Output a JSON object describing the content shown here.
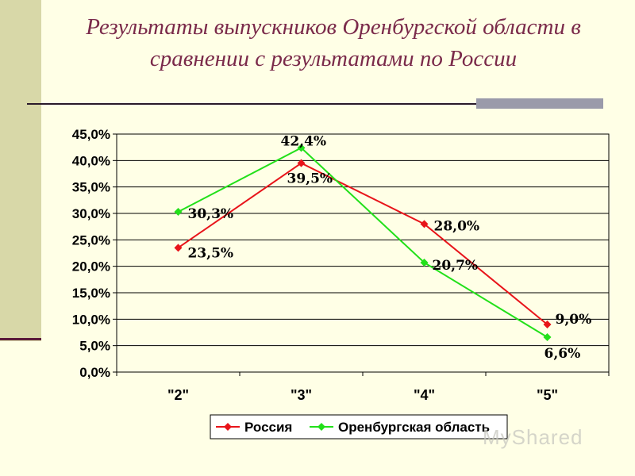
{
  "slide": {
    "title": "Результаты выпускников Оренбургской области в сравнении с результатами по России",
    "watermark": "MyShared"
  },
  "chart_data": {
    "type": "line",
    "title": "",
    "xlabel": "",
    "ylabel": "",
    "categories": [
      "\"2\"",
      "\"3\"",
      "\"4\"",
      "\"5\""
    ],
    "ylim": [
      0,
      45
    ],
    "ytick_step": 5,
    "ytick_labels": [
      "0,0%",
      "5,0%",
      "10,0%",
      "15,0%",
      "20,0%",
      "25,0%",
      "30,0%",
      "35,0%",
      "40,0%",
      "45,0%"
    ],
    "grid": true,
    "legend_position": "bottom",
    "series": [
      {
        "name": "Россия",
        "values": [
          23.5,
          39.5,
          28.0,
          9.0
        ],
        "labels": [
          "23,5%",
          "39,5%",
          "28,0%",
          "9,0%"
        ],
        "color": "#e8141a",
        "marker": "diamond"
      },
      {
        "name": "Оренбургская область",
        "values": [
          30.3,
          42.4,
          20.7,
          6.6
        ],
        "labels": [
          "30,3%",
          "42,4%",
          "20,7%",
          "6,6%"
        ],
        "color": "#22e01a",
        "marker": "diamond"
      }
    ]
  }
}
